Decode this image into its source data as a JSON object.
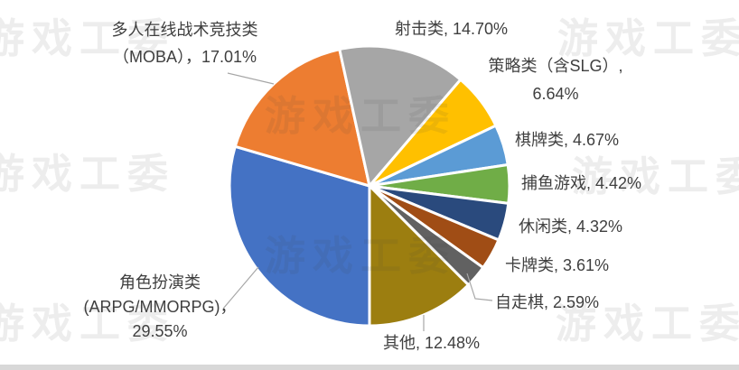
{
  "chart_data": {
    "type": "pie",
    "title": "",
    "unit": "%",
    "start_angle_deg": 180,
    "direction": "clockwise",
    "slice_border_color": "#ffffff",
    "slices": [
      {
        "name": "角色扮演类（ARPG/MMORPG）",
        "value": 29.55,
        "color": "#4472C4"
      },
      {
        "name": "多人在线战术竞技类（MOBA）",
        "value": 17.01,
        "color": "#ED7D31"
      },
      {
        "name": "射击类",
        "value": 14.7,
        "color": "#A6A6A6"
      },
      {
        "name": "策略类（含SLG）",
        "value": 6.64,
        "color": "#FFC000"
      },
      {
        "name": "棋牌类",
        "value": 4.67,
        "color": "#5B9BD5"
      },
      {
        "name": "捕鱼游戏",
        "value": 4.42,
        "color": "#70AD47"
      },
      {
        "name": "休闲类",
        "value": 4.32,
        "color": "#2A4A7D"
      },
      {
        "name": "卡牌类",
        "value": 3.61,
        "color": "#A04D15"
      },
      {
        "name": "自走棋",
        "value": 2.59,
        "color": "#616161"
      },
      {
        "name": "其他",
        "value": 12.48,
        "color": "#9C7E10"
      }
    ]
  },
  "labels": {
    "moba": {
      "line1": "多人在线战术竞技类",
      "line2": "（MOBA），17.01%"
    },
    "shooter": {
      "line1": "射击类, 14.70%"
    },
    "strategy": {
      "line1": "策略类（含SLG）,",
      "line2": "6.64%"
    },
    "chess": {
      "line1": "棋牌类, 4.67%"
    },
    "fishing": {
      "line1": "捕鱼游戏, 4.42%"
    },
    "casual": {
      "line1": "休闲类, 4.32%"
    },
    "card": {
      "line1": "卡牌类, 3.61%"
    },
    "autochess": {
      "line1": "自走棋, 2.59%"
    },
    "other": {
      "line1": "其他, 12.48%"
    },
    "rpg": {
      "line1": "角色扮演类",
      "line2": "(ARPG/MMORPG)，",
      "line3": "29.55%"
    }
  },
  "watermark": {
    "text": "游戏工委",
    "color": "#3C3C3C",
    "opacity": 0.095
  },
  "colors": {
    "label_text": "#3F3F3F",
    "leader_line": "#A6A6A6",
    "bottom_edge": "#D8D8D8"
  }
}
